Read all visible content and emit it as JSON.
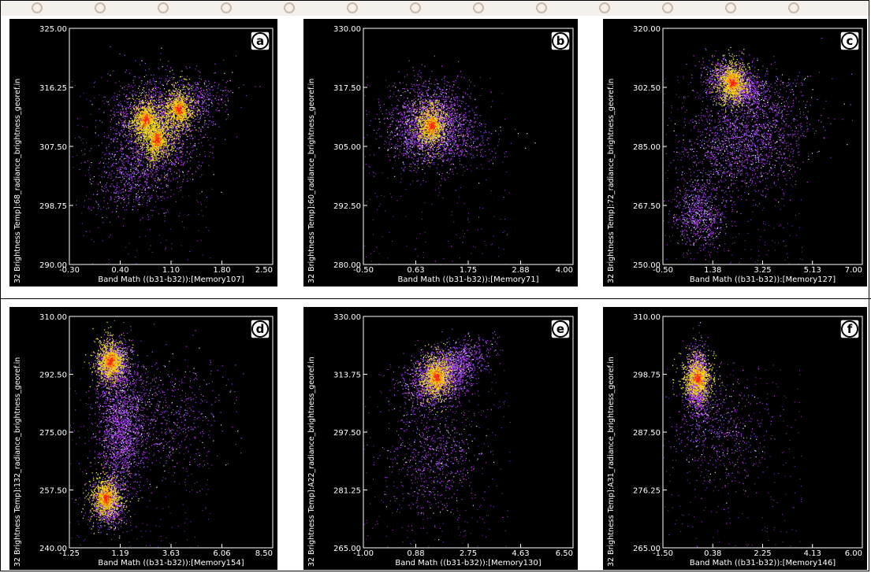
{
  "figure": {
    "panels_count": 6
  },
  "chart_data": [
    {
      "id": "a",
      "type": "scatter",
      "panel_label": "a",
      "xlabel": "Band Math ((b31-b32)):[Memory107]",
      "ylabel": "32 Brightness Temp]:68_radiance_brightness_georef.in",
      "xlim": [
        -0.3,
        2.5
      ],
      "ylim": [
        290.0,
        325.0
      ],
      "xticks": [
        "-0.30",
        "0.40",
        "1.10",
        "1.80",
        "2.50"
      ],
      "yticks": [
        "290.00",
        "298.75",
        "307.50",
        "316.25",
        "325.00"
      ],
      "clusters": [
        {
          "x": 0.85,
          "y": 310.0,
          "sx": 0.32,
          "sy": 4.0,
          "n": 1800,
          "rot": 0.55
        },
        {
          "x": 1.25,
          "y": 313.5,
          "sx": 0.35,
          "sy": 1.8,
          "n": 700,
          "rot": 0.3
        },
        {
          "x": 0.55,
          "y": 303.0,
          "sx": 0.28,
          "sy": 2.5,
          "n": 500,
          "rot": 0.4
        }
      ],
      "hot_centers": [
        {
          "x": 0.75,
          "y": 311.5
        },
        {
          "x": 0.9,
          "y": 308.5
        },
        {
          "x": 1.2,
          "y": 313.0
        }
      ],
      "scatter_extra": 220
    },
    {
      "id": "b",
      "type": "scatter",
      "panel_label": "b",
      "xlabel": "Band Math ((b31-b32)):[Memory71]",
      "ylabel": "32 Brightness Temp]:60_radiance_brightness_georef.in",
      "xlim": [
        -0.5,
        4.0
      ],
      "ylim": [
        280.0,
        330.0
      ],
      "xticks": [
        "-0.50",
        "0.63",
        "1.75",
        "2.88",
        "4.00"
      ],
      "yticks": [
        "280.00",
        "292.50",
        "305.00",
        "317.50",
        "330.00"
      ],
      "clusters": [
        {
          "x": 0.95,
          "y": 310.0,
          "sx": 0.42,
          "sy": 4.0,
          "n": 2000,
          "rot": 0.0
        },
        {
          "x": 1.15,
          "y": 306.0,
          "sx": 0.6,
          "sy": 3.0,
          "n": 500,
          "rot": 0.0
        }
      ],
      "hot_centers": [
        {
          "x": 0.95,
          "y": 309.5
        }
      ],
      "scatter_extra": 260
    },
    {
      "id": "c",
      "type": "scatter",
      "panel_label": "c",
      "xlabel": "Band Math ((b31-b32)):[Memory127]",
      "ylabel": "32 Brightness Temp]:72_radiance_brightness_georef.in",
      "xlim": [
        -0.5,
        7.0
      ],
      "ylim": [
        250.0,
        320.0
      ],
      "xticks": [
        "-0.50",
        "1.38",
        "3.25",
        "5.13",
        "7.00"
      ],
      "yticks": [
        "250.00",
        "267.50",
        "285.00",
        "302.50",
        "320.00"
      ],
      "clusters": [
        {
          "x": 2.2,
          "y": 303.5,
          "sx": 0.55,
          "sy": 3.0,
          "n": 1400,
          "rot": -0.35
        },
        {
          "x": 2.6,
          "y": 288.0,
          "sx": 1.2,
          "sy": 8.0,
          "n": 1800,
          "rot": 0.4
        },
        {
          "x": 0.9,
          "y": 265.0,
          "sx": 0.45,
          "sy": 5.0,
          "n": 700,
          "rot": 0.4
        }
      ],
      "hot_centers": [
        {
          "x": 2.1,
          "y": 304.0
        }
      ],
      "scatter_extra": 400
    },
    {
      "id": "d",
      "type": "scatter",
      "panel_label": "d",
      "xlabel": "Band Math ((b31-b32)):[Memory154]",
      "ylabel": "32 Brightness Temp]:132_radiance_brightness_georef.in",
      "xlim": [
        -1.25,
        8.5
      ],
      "ylim": [
        240.0,
        310.0
      ],
      "xticks": [
        "-1.25",
        "1.19",
        "3.63",
        "6.06",
        "8.50"
      ],
      "yticks": [
        "240.00",
        "257.50",
        "275.00",
        "292.50",
        "310.00"
      ],
      "clusters": [
        {
          "x": 0.8,
          "y": 296.0,
          "sx": 0.35,
          "sy": 3.0,
          "n": 1200,
          "rot": 0.0
        },
        {
          "x": 1.2,
          "y": 277.0,
          "sx": 0.55,
          "sy": 10.0,
          "n": 1800,
          "rot": 0.0
        },
        {
          "x": 0.6,
          "y": 254.0,
          "sx": 0.35,
          "sy": 3.5,
          "n": 900,
          "rot": 0.0
        },
        {
          "x": 3.2,
          "y": 280.0,
          "sx": 1.5,
          "sy": 9.0,
          "n": 600,
          "rot": 0.0
        }
      ],
      "hot_centers": [
        {
          "x": 0.7,
          "y": 296.5
        },
        {
          "x": 0.5,
          "y": 255.0
        }
      ],
      "scatter_extra": 350
    },
    {
      "id": "e",
      "type": "scatter",
      "panel_label": "e",
      "xlabel": "Band Math ((b31-b32)):[Memory130]",
      "ylabel": "32 Brightness Temp]:A22_radiance_brightness_georef.in",
      "xlim": [
        -1.0,
        6.5
      ],
      "ylim": [
        265.0,
        330.0
      ],
      "xticks": [
        "-1.00",
        "0.88",
        "2.75",
        "4.63",
        "6.50"
      ],
      "yticks": [
        "265.00",
        "281.25",
        "297.50",
        "313.75",
        "330.00"
      ],
      "clusters": [
        {
          "x": 1.7,
          "y": 313.0,
          "sx": 0.6,
          "sy": 3.5,
          "n": 1800,
          "rot": 0.5
        },
        {
          "x": 2.3,
          "y": 317.0,
          "sx": 0.7,
          "sy": 2.5,
          "n": 600,
          "rot": 0.4
        },
        {
          "x": 1.5,
          "y": 290.0,
          "sx": 0.8,
          "sy": 8.0,
          "n": 600,
          "rot": 0.0
        }
      ],
      "hot_centers": [
        {
          "x": 1.6,
          "y": 313.0
        }
      ],
      "scatter_extra": 350
    },
    {
      "id": "f",
      "type": "scatter",
      "panel_label": "f",
      "xlabel": "Band Math ((b31-b32)):[Memory146]",
      "ylabel": "32 Brightness Temp]:A31_radiance_brightness_georef.in",
      "xlim": [
        -1.5,
        6.0
      ],
      "ylim": [
        265.0,
        310.0
      ],
      "xticks": [
        "-1.50",
        "0.38",
        "2.25",
        "4.13",
        "6.00"
      ],
      "yticks": [
        "265.00",
        "276.25",
        "287.50",
        "298.75",
        "310.00"
      ],
      "clusters": [
        {
          "x": -0.2,
          "y": 297.5,
          "sx": 0.2,
          "sy": 3.2,
          "n": 1500,
          "rot": 0.0
        },
        {
          "x": 0.6,
          "y": 288.0,
          "sx": 0.9,
          "sy": 5.0,
          "n": 500,
          "rot": 0.0
        }
      ],
      "hot_centers": [
        {
          "x": -0.2,
          "y": 298.0
        }
      ],
      "scatter_extra": 300
    }
  ]
}
